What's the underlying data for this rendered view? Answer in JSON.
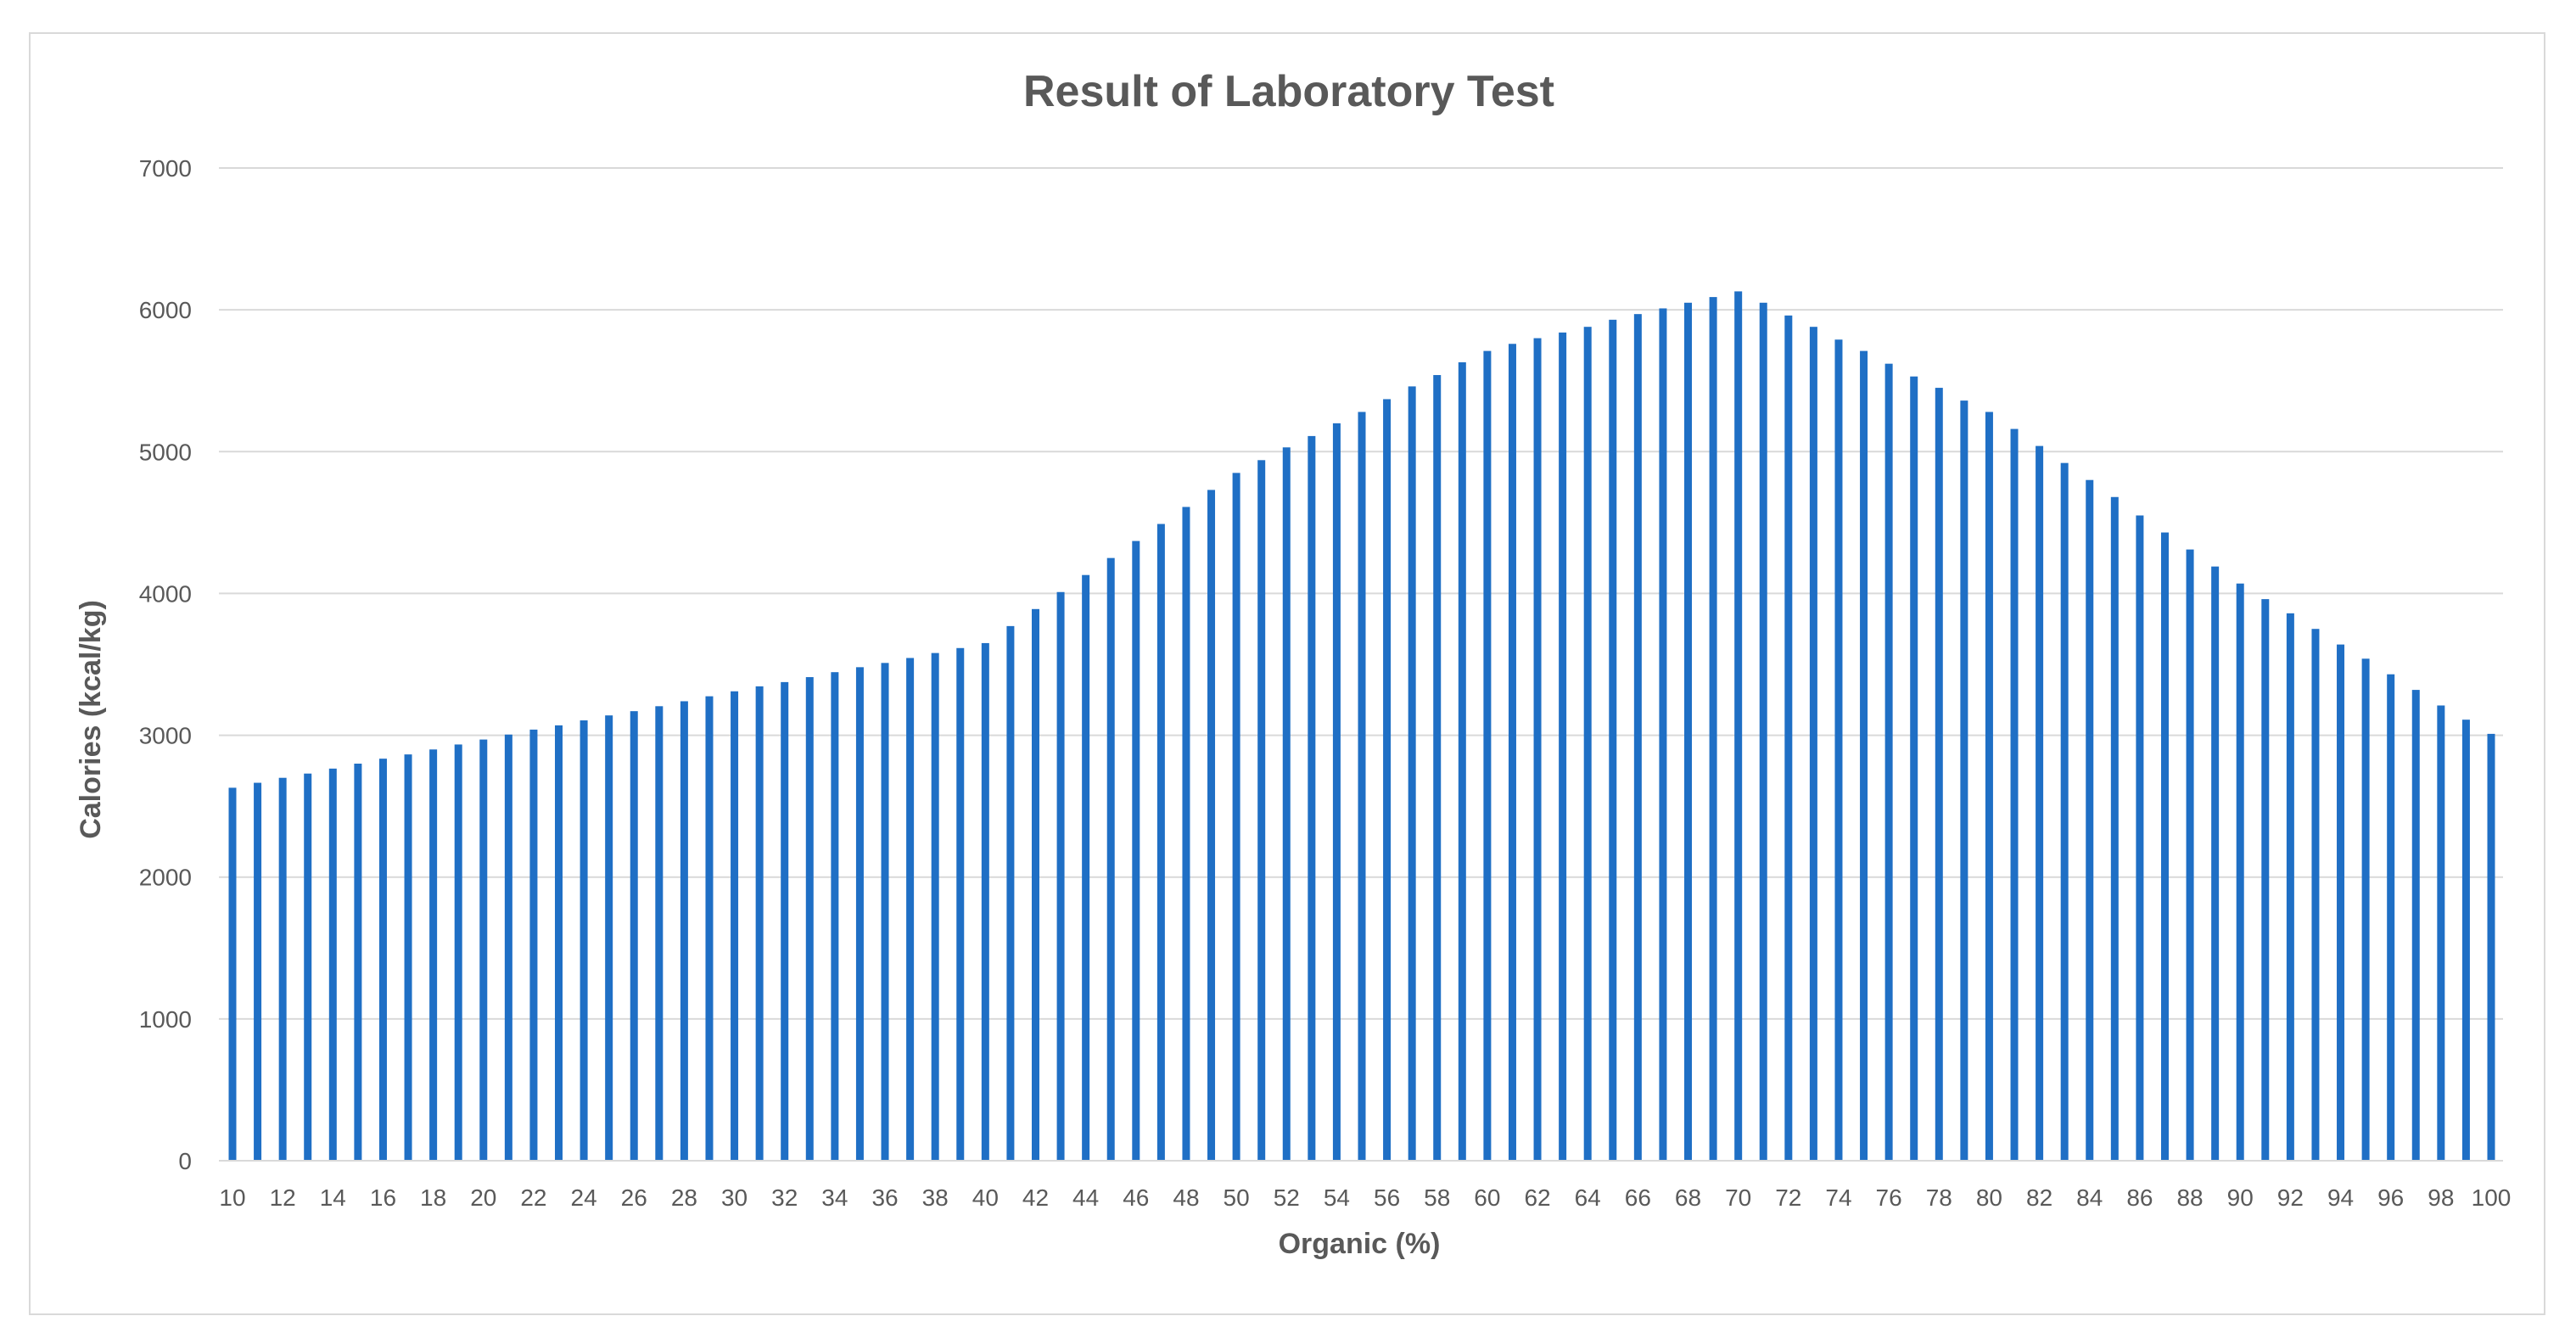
{
  "chart_data": {
    "type": "bar",
    "title": "Result of Laboratory Test",
    "xlabel": "Organic (%)",
    "ylabel": "Calories (kcal/kg)",
    "ylim": [
      0,
      7000
    ],
    "yticks": [
      0,
      1000,
      2000,
      3000,
      4000,
      5000,
      6000,
      7000
    ],
    "grid": "horizontal",
    "legend": "none",
    "bar_color": "#1f6fc5",
    "categories": [
      10,
      11,
      12,
      13,
      14,
      15,
      16,
      17,
      18,
      19,
      20,
      21,
      22,
      23,
      24,
      25,
      26,
      27,
      28,
      29,
      30,
      31,
      32,
      33,
      34,
      35,
      36,
      37,
      38,
      39,
      40,
      41,
      42,
      43,
      44,
      45,
      46,
      47,
      48,
      49,
      50,
      51,
      52,
      53,
      54,
      55,
      56,
      57,
      58,
      59,
      60,
      61,
      62,
      63,
      64,
      65,
      66,
      67,
      68,
      69,
      70,
      71,
      72,
      73,
      74,
      75,
      76,
      77,
      78,
      79,
      80,
      81,
      82,
      83,
      84,
      85,
      86,
      87,
      88,
      89,
      90,
      91,
      92,
      93,
      94,
      95,
      96,
      97,
      98,
      99,
      100
    ],
    "xtick_labels": [
      10,
      12,
      14,
      16,
      18,
      20,
      22,
      24,
      26,
      28,
      30,
      32,
      34,
      36,
      38,
      40,
      42,
      44,
      46,
      48,
      50,
      52,
      54,
      56,
      58,
      60,
      62,
      64,
      66,
      68,
      70,
      72,
      74,
      76,
      78,
      80,
      82,
      84,
      86,
      88,
      90,
      92,
      94,
      96,
      98,
      100
    ],
    "values": [
      2630,
      2665,
      2700,
      2730,
      2765,
      2800,
      2835,
      2865,
      2900,
      2935,
      2970,
      3005,
      3040,
      3070,
      3105,
      3140,
      3170,
      3205,
      3240,
      3275,
      3310,
      3345,
      3375,
      3410,
      3445,
      3480,
      3510,
      3545,
      3580,
      3615,
      3650,
      3770,
      3890,
      4010,
      4130,
      4250,
      4370,
      4490,
      4610,
      4730,
      4850,
      4940,
      5030,
      5110,
      5200,
      5280,
      5370,
      5460,
      5540,
      5630,
      5710,
      5760,
      5800,
      5840,
      5880,
      5930,
      5970,
      6010,
      6050,
      6090,
      6130,
      6050,
      5960,
      5880,
      5790,
      5710,
      5620,
      5530,
      5450,
      5360,
      5280,
      5160,
      5040,
      4920,
      4800,
      4680,
      4550,
      4430,
      4310,
      4190,
      4070,
      3960,
      3860,
      3750,
      3640,
      3540,
      3430,
      3320,
      3210,
      3110,
      3010
    ]
  }
}
